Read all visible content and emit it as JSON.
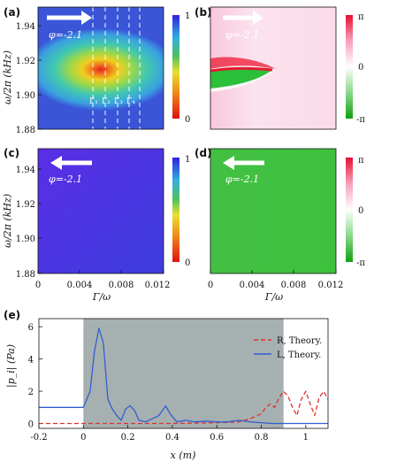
{
  "colors": {
    "blue": "#3a4bd8",
    "purple": "#4a2ee0",
    "green": "#3fbf3f",
    "pink": "#f7c6dc",
    "red": "#e01a2a",
    "gray_band": "#a6b0b0",
    "line_R": "#e03030",
    "line_L": "#3060d0"
  },
  "panels": {
    "a": {
      "label": "(a)",
      "phi": "φ=-2.1",
      "gammas": [
        "Γ₁",
        "Γ₂",
        "Γ₃",
        "Γ₄"
      ]
    },
    "b": {
      "label": "(b)",
      "phi": "φ=-2.1"
    },
    "c": {
      "label": "(c)",
      "phi": "φ=-2.1"
    },
    "d": {
      "label": "(d)",
      "phi": "φ=-2.1"
    },
    "e": {
      "label": "(e)"
    }
  },
  "colorbars": {
    "amp": {
      "max": "1",
      "min": "0"
    },
    "phase": {
      "max": "π",
      "mid": "0",
      "min": "-π"
    }
  },
  "axes": {
    "y_label_top": "ω/2π (kHz)",
    "y_ticks_top": [
      "1.94",
      "1.92",
      "1.90",
      "1.88"
    ],
    "x_ticks_mid": [
      "0",
      "0.004",
      "0.008",
      "0.012"
    ],
    "x_label_mid": "Γ/ω",
    "e_ylabel": "|p_i| (Pa)",
    "e_xlabel": "x (m)"
  },
  "chart_data": [
    {
      "type": "heatmap",
      "panel": "a",
      "x_range": [
        0,
        0.012
      ],
      "y_range": [
        1.88,
        1.95
      ],
      "xlabel": "",
      "ylabel": "ω/2π (kHz)",
      "colorbar_range": [
        0,
        1
      ],
      "peak": {
        "x": 0.006,
        "y": 1.912
      },
      "gamma_lines_x": [
        0.004,
        0.005,
        0.006,
        0.007,
        0.008
      ]
    },
    {
      "type": "heatmap",
      "panel": "b",
      "x_range": [
        0,
        0.012
      ],
      "y_range": [
        1.88,
        1.95
      ],
      "colorbar_range": [
        "-π",
        "π"
      ]
    },
    {
      "type": "heatmap",
      "panel": "c",
      "x_range": [
        0,
        0.012
      ],
      "y_range": [
        1.88,
        1.95
      ],
      "xlabel": "Γ/ω",
      "ylabel": "ω/2π (kHz)",
      "colorbar_range": [
        0,
        1
      ]
    },
    {
      "type": "heatmap",
      "panel": "d",
      "x_range": [
        0,
        0.012
      ],
      "y_range": [
        1.88,
        1.95
      ],
      "xlabel": "Γ/ω",
      "colorbar_range": [
        "-π",
        "π"
      ]
    },
    {
      "type": "line",
      "panel": "e",
      "xlabel": "x (m)",
      "ylabel": "|p_i| (Pa)",
      "xlim": [
        -0.2,
        1.1
      ],
      "ylim": [
        -0.3,
        6.5
      ],
      "x_ticks": [
        "-0.2",
        "0",
        "0.2",
        "0.4",
        "0.6",
        "0.8",
        "1"
      ],
      "y_ticks": [
        "0",
        "2",
        "4",
        "6"
      ],
      "shaded_region": [
        0,
        0.9
      ],
      "legend_position": "right",
      "series": [
        {
          "name": "R, Theory.",
          "style": "dashed",
          "x": [
            -0.2,
            0.0,
            0.2,
            0.4,
            0.6,
            0.7,
            0.75,
            0.8,
            0.82,
            0.84,
            0.86,
            0.88,
            0.9,
            0.92,
            0.94,
            0.96,
            0.98,
            1.0,
            1.02,
            1.04,
            1.06,
            1.08,
            1.1
          ],
          "y": [
            0,
            0,
            0,
            0,
            0.05,
            0.1,
            0.3,
            0.6,
            1.0,
            1.2,
            1.0,
            1.6,
            2.0,
            1.7,
            1.0,
            0.5,
            1.5,
            2.0,
            1.2,
            0.5,
            1.6,
            2.0,
            1.5
          ]
        },
        {
          "name": "L, Theory.",
          "style": "solid",
          "x": [
            -0.2,
            0.0,
            0.03,
            0.05,
            0.07,
            0.09,
            0.11,
            0.13,
            0.15,
            0.17,
            0.19,
            0.21,
            0.23,
            0.25,
            0.28,
            0.31,
            0.34,
            0.37,
            0.39,
            0.42,
            0.46,
            0.5,
            0.55,
            0.6,
            0.65,
            0.7,
            0.75,
            0.8,
            0.85,
            0.9,
            1.1
          ],
          "y": [
            1.0,
            1.0,
            2.0,
            4.5,
            5.9,
            5.0,
            1.5,
            0.9,
            0.5,
            0.2,
            0.9,
            1.1,
            0.8,
            0.2,
            0.1,
            0.3,
            0.5,
            1.1,
            0.6,
            0.1,
            0.2,
            0.1,
            0.15,
            0.1,
            0.1,
            0.2,
            0.1,
            0.05,
            0.0,
            0.0,
            0.0
          ]
        }
      ]
    }
  ]
}
